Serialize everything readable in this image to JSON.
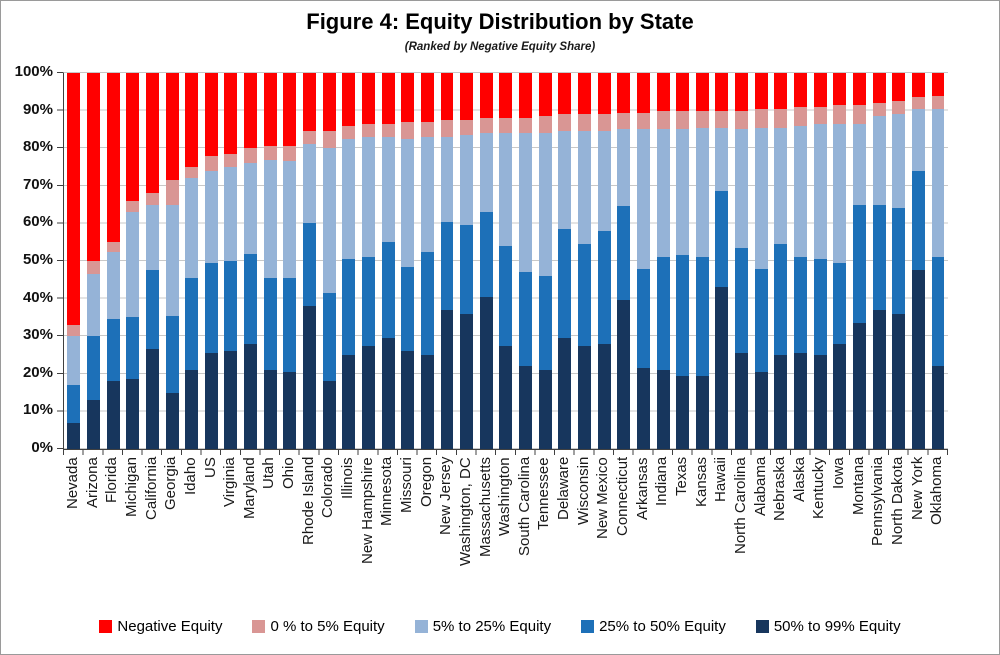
{
  "chart_data": {
    "type": "bar",
    "variant": "100%-stacked-column",
    "title": "Figure 4: Equity Distribution by State",
    "subtitle": "(Ranked by Negative Equity Share)",
    "ylim": [
      0,
      100
    ],
    "y_ticks": [
      "0%",
      "10%",
      "20%",
      "30%",
      "40%",
      "50%",
      "60%",
      "70%",
      "80%",
      "90%",
      "100%"
    ],
    "grid": true,
    "legend_position": "bottom",
    "categories": [
      "Nevada",
      "Arizona",
      "Florida",
      "Michigan",
      "California",
      "Georgia",
      "Idaho",
      "US",
      "Virginia",
      "Maryland",
      "Utah",
      "Ohio",
      "Rhode Island",
      "Colorado",
      "Illinois",
      "New Hampshire",
      "Minnesota",
      "Missouri",
      "Oregon",
      "New Jersey",
      "Washington, DC",
      "Massachusetts",
      "Washington",
      "South Carolina",
      "Tennessee",
      "Delaware",
      "Wisconsin",
      "New Mexico",
      "Connecticut",
      "Arkansas",
      "Indiana",
      "Texas",
      "Kansas",
      "Hawaii",
      "North Carolina",
      "Alabama",
      "Nebraska",
      "Alaska",
      "Kentucky",
      "Iowa",
      "Montana",
      "Pennsylvania",
      "North Dakota",
      "New York",
      "Oklahoma"
    ],
    "series": [
      {
        "name": "50% to 99% Equity",
        "color": "#17365D",
        "values": [
          7,
          13,
          18,
          18.5,
          26.5,
          15,
          21,
          25.5,
          26,
          28,
          21,
          20.5,
          38,
          18,
          25,
          27.5,
          29.5,
          26,
          25,
          37,
          36,
          40.5,
          27.5,
          22,
          21,
          29.5,
          27.5,
          28,
          39.5,
          21.5,
          21,
          19.5,
          19.5,
          43,
          25.5,
          20.5,
          25,
          25.5,
          25,
          28,
          33.5,
          37,
          36,
          47.5,
          22
        ]
      },
      {
        "name": "25% to 50% Equity",
        "color": "#1D70B8",
        "values": [
          10,
          17,
          16.5,
          16.5,
          21,
          20.5,
          24.5,
          24,
          24,
          24,
          24.5,
          25,
          22,
          23.5,
          25.5,
          23.5,
          25.5,
          22.5,
          27.5,
          23.5,
          23.5,
          22.5,
          26.5,
          25,
          25,
          29,
          27,
          30,
          25,
          26.5,
          30,
          32,
          31.5,
          25.5,
          28,
          27.5,
          29.5,
          25.5,
          25.5,
          21.5,
          31.5,
          28,
          28,
          26.5,
          29
        ]
      },
      {
        "name": "5% to 25% Equity",
        "color": "#95B3D7",
        "values": [
          13,
          16.5,
          18,
          28,
          17.5,
          29.5,
          26.5,
          24.5,
          25,
          24,
          31.5,
          31,
          21,
          38.5,
          32,
          32,
          28,
          34,
          30.5,
          22.5,
          24,
          21,
          30,
          37,
          38,
          26,
          30,
          26.5,
          20.5,
          37,
          34,
          33.5,
          34.5,
          17,
          31.5,
          37.5,
          31,
          35,
          36,
          37,
          21.5,
          23.5,
          25,
          16.5,
          39.5
        ]
      },
      {
        "name": "0 % to 5% Equity",
        "color": "#D99694",
        "values": [
          3,
          3.5,
          2.5,
          3,
          3,
          6.5,
          3,
          4,
          3.5,
          4,
          3.5,
          4,
          3.5,
          4.5,
          3.5,
          3.5,
          3.5,
          4.5,
          4,
          4.5,
          4,
          4,
          4,
          4,
          4.5,
          4.5,
          4.5,
          4.5,
          4.5,
          4.5,
          5,
          5,
          4.5,
          4.5,
          5,
          5,
          5,
          5,
          4.5,
          5,
          5,
          3.5,
          3.5,
          3,
          3.5
        ]
      },
      {
        "name": "Negative Equity",
        "color": "#FF0000",
        "values": [
          67,
          50,
          45,
          34,
          32,
          28.5,
          25,
          22,
          21.5,
          20,
          19.5,
          19.5,
          15.5,
          15.5,
          14,
          13.5,
          13.5,
          13,
          13,
          12.5,
          12.5,
          12,
          12,
          12,
          11.5,
          11,
          11,
          11,
          10.5,
          10.5,
          10,
          10,
          10,
          10,
          10,
          9.5,
          9.5,
          9,
          9,
          8.5,
          8.5,
          8,
          7.5,
          6.5,
          6
        ]
      }
    ],
    "legend": [
      {
        "label": "Negative Equity",
        "color": "#FF0000"
      },
      {
        "label": "0 % to 5% Equity",
        "color": "#D99694"
      },
      {
        "label": "5% to 25% Equity",
        "color": "#95B3D7"
      },
      {
        "label": "25% to 50% Equity",
        "color": "#1D70B8"
      },
      {
        "label": "50% to 99% Equity",
        "color": "#17365D"
      }
    ]
  }
}
